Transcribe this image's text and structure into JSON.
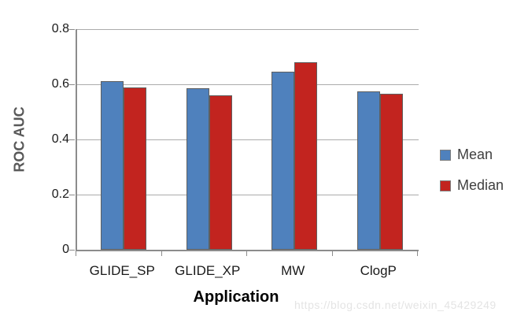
{
  "chart_data": {
    "type": "bar",
    "categories": [
      "GLIDE_SP",
      "GLIDE_XP",
      "MW",
      "ClogP"
    ],
    "series": [
      {
        "name": "Mean",
        "color": "#4F81BD",
        "values": [
          0.61,
          0.585,
          0.645,
          0.575
        ]
      },
      {
        "name": "Median",
        "color": "#C2241F",
        "values": [
          0.59,
          0.56,
          0.68,
          0.565
        ]
      }
    ],
    "title": "",
    "xlabel": "Application",
    "ylabel": "ROC AUC",
    "ylim": [
      0,
      0.8
    ],
    "yticks": [
      0,
      0.2,
      0.4,
      0.6,
      0.8
    ],
    "ytick_labels": [
      "0",
      "0.2",
      "0.4",
      "0.6",
      "0.8"
    ],
    "grid": true,
    "legend_position": "right"
  },
  "watermark": {
    "text": "https://blog.csdn.net/weixin_45429249"
  },
  "colors": {
    "bar_border": "#5F5F5F",
    "gridline": "#ABABAB",
    "axis": "#8C8C8C",
    "tick_label": "#1A1A1A",
    "ylabel_text": "#595959",
    "xlabel_text": "#000000",
    "legend_text": "#3F3F3F",
    "watermark_text": "#E4E4E4",
    "background": "#FFFFFF"
  }
}
